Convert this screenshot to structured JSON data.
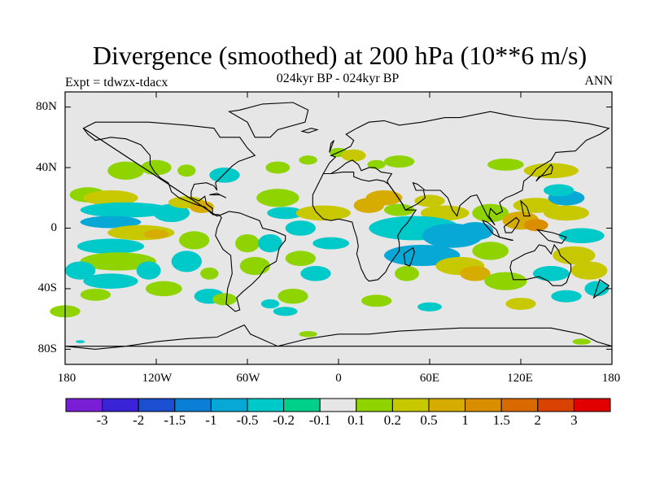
{
  "figure": {
    "title": "Divergence (smoothed) at 200 hPa (10**6 m/s)",
    "subtitle": "024kyr BP - 024kyr BP",
    "experiment": "Expt = tdwzx-tdacx",
    "season": "ANN"
  },
  "axes": {
    "lat_labels": [
      "80N",
      "40N",
      "0",
      "40S",
      "80S"
    ],
    "lat_values": [
      80,
      40,
      0,
      -40,
      -80
    ],
    "lon_labels": [
      "180",
      "120W",
      "60W",
      "0",
      "60E",
      "120E",
      "180"
    ],
    "lon_values": [
      -180,
      -120,
      -60,
      0,
      60,
      120,
      180
    ]
  },
  "colorbar": {
    "colors": [
      "#7a1ed6",
      "#3a22d6",
      "#1a4fd0",
      "#0b7fd6",
      "#08a8d6",
      "#00c9c9",
      "#00d08a",
      "#e6e6e6",
      "#8fd400",
      "#c8c800",
      "#d6ac00",
      "#d98e00",
      "#d96a00",
      "#d94200",
      "#e00000"
    ],
    "labels": [
      "-3",
      "-2",
      "-1.5",
      "-1",
      "-0.5",
      "-0.2",
      "-0.1",
      "0.1",
      "0.2",
      "0.5",
      "1",
      "1.5",
      "2",
      "3"
    ]
  }
}
